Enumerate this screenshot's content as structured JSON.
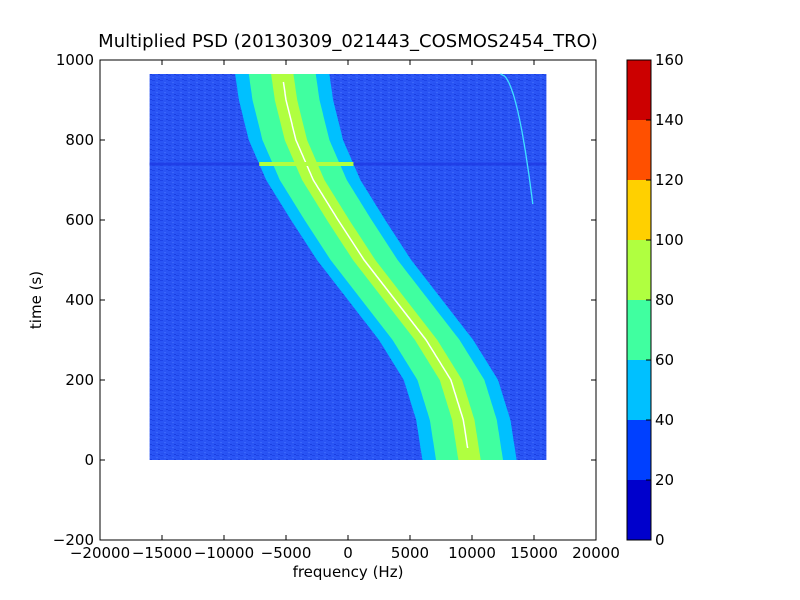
{
  "chart_data": {
    "type": "heatmap",
    "title": "Multiplied PSD (20130309_021443_COSMOS2454_TRO)",
    "xlabel": "frequency (Hz)",
    "ylabel": "time (s)",
    "xlim": [
      -20000,
      20000
    ],
    "ylim": [
      -200,
      1000
    ],
    "xticks": [
      -20000,
      -15000,
      -10000,
      -5000,
      0,
      5000,
      10000,
      15000,
      20000
    ],
    "xtick_labels": [
      "−20000",
      "−15000",
      "−10000",
      "−5000",
      "0",
      "5000",
      "10000",
      "15000",
      "20000"
    ],
    "yticks": [
      -200,
      0,
      200,
      400,
      600,
      800,
      1000
    ],
    "ytick_labels": [
      "−200",
      "0",
      "200",
      "400",
      "600",
      "800",
      "1000"
    ],
    "data_extent": {
      "x": [
        -16000,
        16000
      ],
      "y": [
        0,
        965
      ]
    },
    "background_level": 25,
    "band_center": [
      {
        "t": 0,
        "f": 9800
      },
      {
        "t": 100,
        "f": 9300
      },
      {
        "t": 200,
        "f": 8300
      },
      {
        "t": 300,
        "f": 6300
      },
      {
        "t": 400,
        "f": 3800
      },
      {
        "t": 500,
        "f": 1300
      },
      {
        "t": 600,
        "f": -800
      },
      {
        "t": 700,
        "f": -2800
      },
      {
        "t": 800,
        "f": -4200
      },
      {
        "t": 900,
        "f": -5000
      },
      {
        "t": 965,
        "f": -5300
      }
    ],
    "band_core_halfwidth_hz": 900,
    "band_peak_level": 85,
    "horizontal_artifact_time": 740,
    "colorbar": {
      "min": 0,
      "max": 160,
      "ticks": [
        0,
        20,
        40,
        60,
        80,
        100,
        120,
        140,
        160
      ],
      "colors": [
        "#0000cc",
        "#0040ff",
        "#00c0ff",
        "#40ffa0",
        "#b0ff40",
        "#ffd000",
        "#ff5000",
        "#cc0000"
      ]
    }
  }
}
